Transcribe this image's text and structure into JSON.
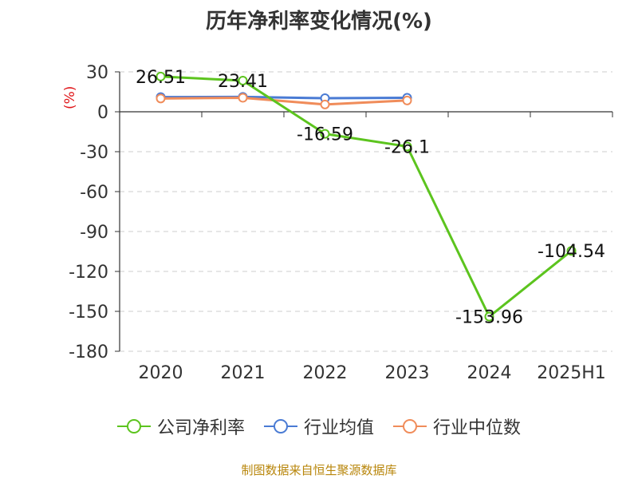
{
  "title": "历年净利率变化情况(%)",
  "unit_label": "(%)",
  "source": "制图数据来自恒生聚源数据库",
  "chart_data": {
    "type": "line",
    "title": "历年净利率变化情况(%)",
    "ylabel": "(%)",
    "categories": [
      "2020",
      "2021",
      "2022",
      "2023",
      "2024",
      "2025H1"
    ],
    "ylim": [
      -180,
      30
    ],
    "yticks": [
      30,
      0,
      -30,
      -60,
      -90,
      -120,
      -150,
      -180
    ],
    "grid": true,
    "legend_position": "bottom",
    "series": [
      {
        "name": "公司净利率",
        "color": "#5cc41e",
        "values": [
          26.51,
          23.41,
          -16.59,
          -26.1,
          -153.96,
          -104.54
        ],
        "labels": [
          "26.51",
          "23.41",
          "-16.59",
          "-26.1",
          "-153.96",
          "-104.54"
        ]
      },
      {
        "name": "行业均值",
        "color": "#4a7bd4",
        "values": [
          11,
          11.2,
          10.2,
          10.5,
          null,
          null
        ]
      },
      {
        "name": "行业中位数",
        "color": "#f08c5a",
        "values": [
          10,
          10.5,
          5.5,
          8.5,
          null,
          null
        ]
      }
    ]
  }
}
